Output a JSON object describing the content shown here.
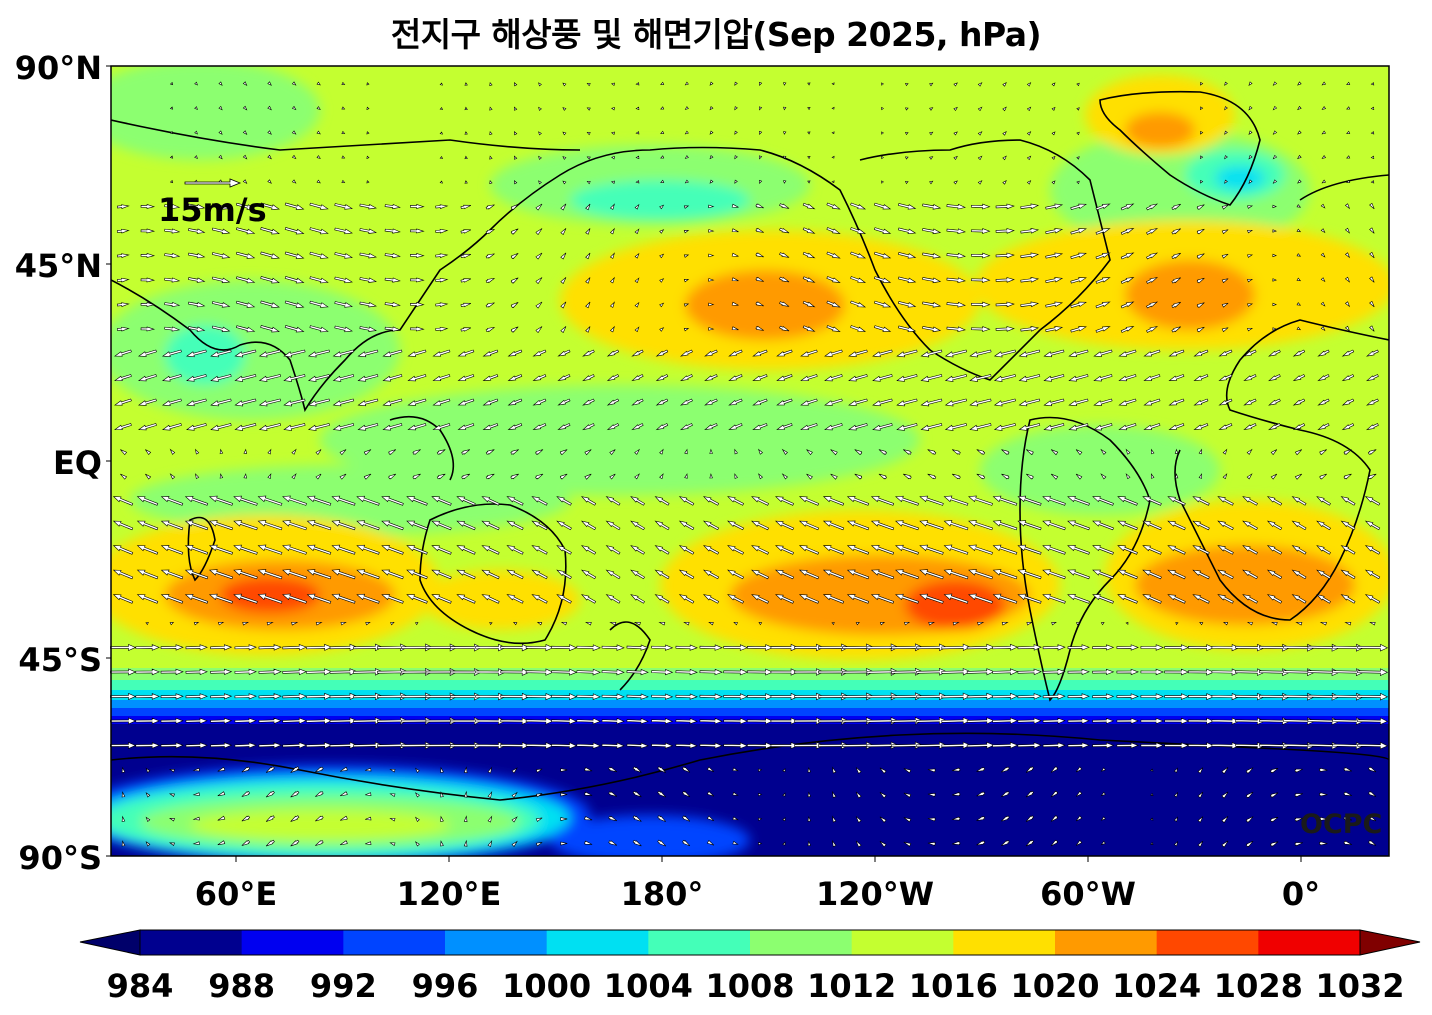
{
  "title": "전지구 해상풍 및 해면기압(Sep 2025, hPa)",
  "latitude_labels": [
    "90°N",
    "45°N",
    "EQ",
    "45°S",
    "90°S"
  ],
  "longitude_labels": [
    "60°E",
    "120°E",
    "180°",
    "120°W",
    "60°W",
    "0°"
  ],
  "wind_reference_label": "15m/s",
  "watermark": "OCPC",
  "colorbar": {
    "levels": [
      "984",
      "988",
      "992",
      "996",
      "1000",
      "1004",
      "1008",
      "1012",
      "1016",
      "1020",
      "1024",
      "1028",
      "1032"
    ],
    "colors": [
      "#00008f",
      "#0000f0",
      "#0044ff",
      "#0090ff",
      "#00e0f2",
      "#44ffb8",
      "#8cff70",
      "#c4ff30",
      "#ffe000",
      "#ff9a00",
      "#ff4800",
      "#f00000"
    ],
    "under_color": "#00006a",
    "over_color": "#800000"
  },
  "colors": {
    "ocean_background": "#c4ff30",
    "coastline": "#000000",
    "wind_arrow_fill": "#ffffff"
  }
}
